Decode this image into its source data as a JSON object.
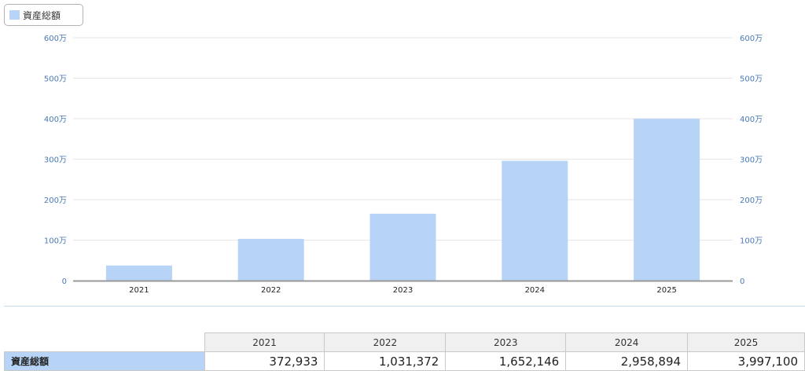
{
  "chart_data": {
    "type": "bar",
    "categories": [
      "2021",
      "2022",
      "2023",
      "2024",
      "2025"
    ],
    "series": [
      {
        "name": "資産総額",
        "values": [
          372933,
          1031372,
          1652146,
          2958894,
          3997100
        ]
      }
    ],
    "ylim": [
      0,
      6000000
    ],
    "yticks": [
      "0",
      "100万",
      "200万",
      "300万",
      "400万",
      "500万",
      "600万"
    ],
    "grid": true,
    "legend": "top-left",
    "colors": {
      "bar": "#b7d3f5",
      "grid": "#e6e6e6",
      "axis": "#999999",
      "tick_label": "#4a7ab5"
    }
  },
  "legend": {
    "label": "資産総額"
  },
  "table": {
    "row_label": "資産総額",
    "headers": [
      "2021",
      "2022",
      "2023",
      "2024",
      "2025"
    ],
    "values": [
      "372,933",
      "1,031,372",
      "1,652,146",
      "2,958,894",
      "3,997,100"
    ]
  }
}
